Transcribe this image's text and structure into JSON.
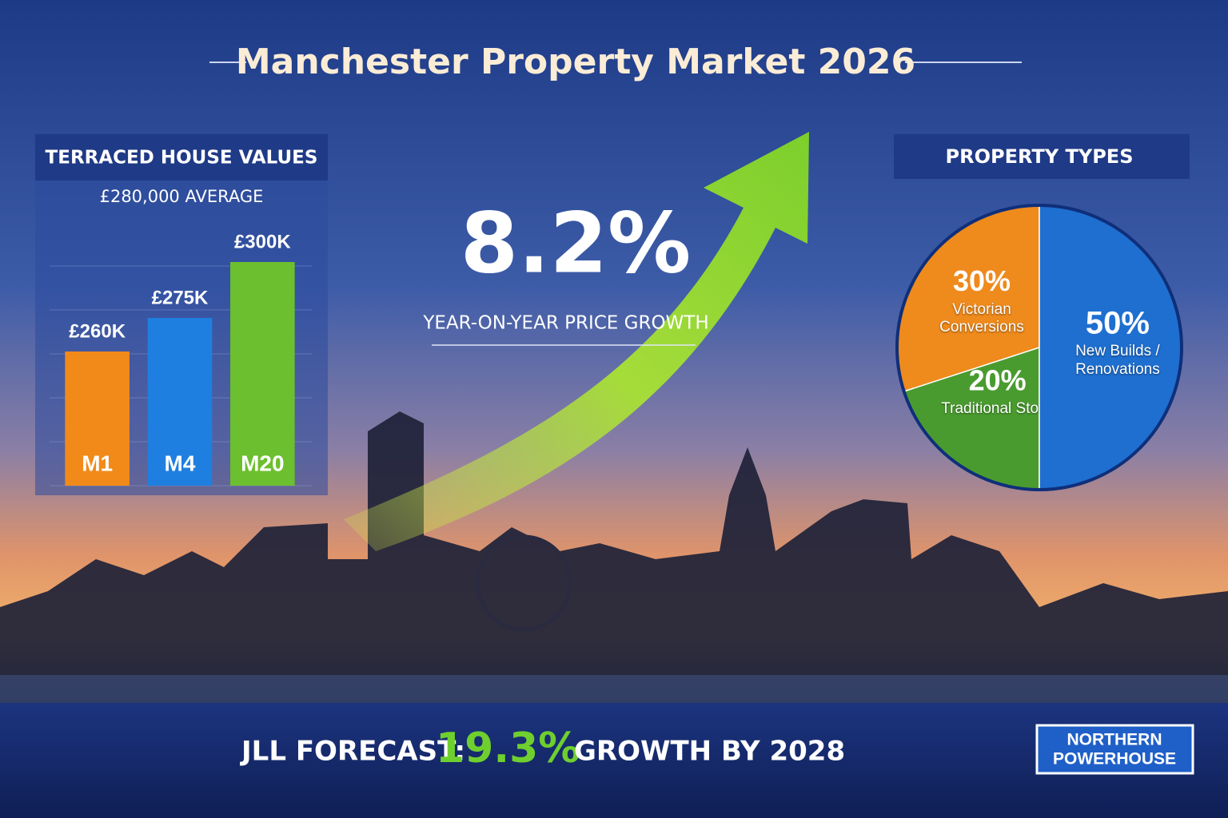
{
  "title": "Manchester Property Market 2026",
  "headline": {
    "value": "8.2%",
    "caption": "YEAR-ON-YEAR PRICE GROWTH"
  },
  "footer": {
    "lead": "JLL FORECAST:",
    "value": "19.3%",
    "tail": "GROWTH BY 2028"
  },
  "logo": {
    "line1": "NORTHERN",
    "line2": "POWERHOUSE"
  },
  "chart_data": [
    {
      "type": "bar",
      "title": "TERRACED HOUSE VALUES",
      "subtitle": "£280,000 AVERAGE",
      "categories": [
        "M1",
        "M4",
        "M20"
      ],
      "values": [
        260000,
        275000,
        300000
      ],
      "value_labels": [
        "£260K",
        "£275K",
        "£300K"
      ],
      "colors": [
        "#f28a1a",
        "#1f7fe0",
        "#6cbf2e"
      ],
      "ylim": [
        200000,
        310000
      ]
    },
    {
      "type": "pie",
      "title": "PROPERTY TYPES",
      "categories": [
        "Victorian Conversions",
        "Traditional Stock",
        "New Builds / Renovations"
      ],
      "values": [
        30,
        20,
        50
      ],
      "value_labels": [
        "30%",
        "20%",
        "50%"
      ],
      "colors": [
        "#ef8a1c",
        "#4a9b2f",
        "#1e6fd0"
      ]
    }
  ]
}
